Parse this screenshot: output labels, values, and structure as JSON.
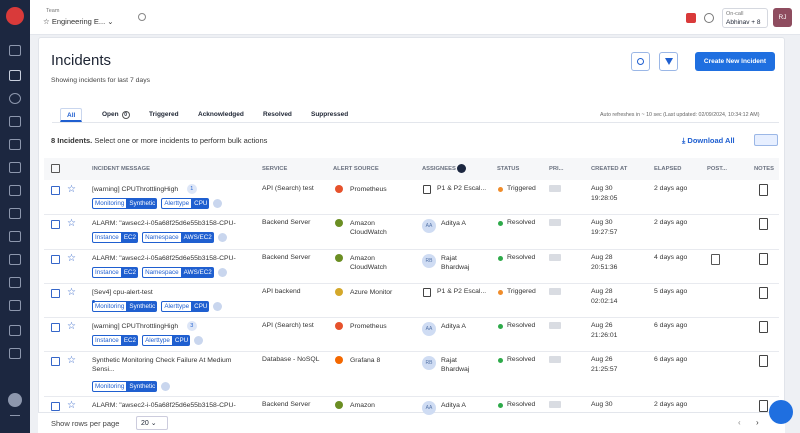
{
  "topbar": {
    "team_label": "Team",
    "team": "Engineering E...",
    "oncall_label": "On-call",
    "oncall": "Abhinav + 8",
    "avatar": "RJ"
  },
  "header": {
    "title": "Incidents",
    "subtitle": "Showing incidents for last 7 days",
    "create_button": "Create New Incident"
  },
  "tabs": [
    {
      "label": "All"
    },
    {
      "label": "Open",
      "count": 0
    },
    {
      "label": "Triggered"
    },
    {
      "label": "Acknowledged"
    },
    {
      "label": "Resolved"
    },
    {
      "label": "Suppressed"
    }
  ],
  "refresh": "Auto refreshes in ~ 10 sec (Last updated: 02/09/2024, 10:34:12 AM)",
  "summary": {
    "count": "8 Incidents.",
    "text": "Select one or more incidents to perform bulk actions",
    "download": "Download All"
  },
  "table": {
    "columns": [
      "INCIDENT MESSAGE",
      "SERVICE",
      "ALERT SOURCE",
      "ASSIGNEES",
      "STATUS",
      "PRI...",
      "CREATED AT",
      "ELAPSED",
      "POST...",
      "NOTES"
    ],
    "rows": [
      {
        "message": "[warning] CPUThrottlingHigh",
        "count": 1,
        "tags": [
          [
            "Monitoring",
            "Synthetic"
          ],
          [
            "Alerttype",
            "CPU"
          ]
        ],
        "service": "API (Search) test",
        "source": "Prometheus",
        "source_color": "#e6522c",
        "assignee": {
          "name": "P1 & P2 Escal..."
        },
        "status": "Triggered",
        "status_color": "#f08c2a",
        "date": "Aug 30",
        "time": "19:28:05",
        "elapsed": "2 days ago"
      },
      {
        "message": "ALARM: \"awsec2-i-05a68f25d6e55b3158-CPU-",
        "tags": [
          [
            "Instance",
            "EC2"
          ],
          [
            "Namespace",
            "AWS/EC2"
          ]
        ],
        "service": "Backend Server",
        "source": "Amazon CloudWatch",
        "source_color": "#6b8e23",
        "assignee": {
          "initials": "AA",
          "name": "Aditya A"
        },
        "status": "Resolved",
        "status_color": "#2eaa4a",
        "date": "Aug 30",
        "time": "19:27:57",
        "elapsed": "2 days ago"
      },
      {
        "message": "ALARM: \"awsec2-i-05a68f25d6e55b3158-CPU-",
        "tags": [
          [
            "Instance",
            "EC2"
          ],
          [
            "Namespace",
            "AWS/EC2"
          ]
        ],
        "service": "Backend Server",
        "source": "Amazon CloudWatch",
        "source_color": "#6b8e23",
        "assignee": {
          "initials": "RB",
          "name": "Rajat Bhardwaj"
        },
        "status": "Resolved",
        "status_color": "#2eaa4a",
        "date": "Aug 28",
        "time": "20:51:36",
        "elapsed": "4 days ago",
        "postmortem": true
      },
      {
        "message": "[Sev4] cpu-alert-test",
        "tags": [
          [
            "Monitoring",
            "Synthetic"
          ],
          [
            "Alerttype",
            "CPU"
          ]
        ],
        "service": "API backend",
        "source": "Azure Monitor",
        "source_color": "#d4a82a",
        "assignee": {
          "name": "P1 & P2 Escal..."
        },
        "status": "Triggered",
        "status_color": "#f08c2a",
        "date": "Aug 28",
        "time": "02:02:14",
        "elapsed": "5 days ago"
      },
      {
        "message": "[warning] CPUThrottlingHigh",
        "count": 3,
        "tags": [
          [
            "Instance",
            "EC2"
          ],
          [
            "Alerttype",
            "CPU"
          ]
        ],
        "service": "API (Search) test",
        "source": "Prometheus",
        "source_color": "#e6522c",
        "assignee": {
          "initials": "AA",
          "name": "Aditya A"
        },
        "status": "Resolved",
        "status_color": "#2eaa4a",
        "date": "Aug 26",
        "time": "21:26:01",
        "elapsed": "6 days ago"
      },
      {
        "message": "Synthetic Monitoring Check Failure At Medium Sensi...",
        "tags": [
          [
            "Monitoring",
            "Synthetic"
          ]
        ],
        "service": "Database - NoSQL",
        "source": "Grafana 8",
        "source_color": "#f46800",
        "assignee": {
          "initials": "RB",
          "name": "Rajat Bhardwaj"
        },
        "status": "Resolved",
        "status_color": "#2eaa4a",
        "date": "Aug 26",
        "time": "21:25:57",
        "elapsed": "6 days ago"
      },
      {
        "message": "ALARM: \"awsec2-i-05a68f25d6e55b3158-CPU-",
        "tags": [],
        "service": "Backend Server",
        "source": "Amazon",
        "source_color": "#6b8e23",
        "assignee": {
          "initials": "AA",
          "name": "Aditya A"
        },
        "status": "Resolved",
        "status_color": "#2eaa4a",
        "date": "Aug 30",
        "elapsed": "2 days ago"
      }
    ]
  },
  "footer": {
    "rows_label": "Show rows per page",
    "rows_value": 20
  }
}
